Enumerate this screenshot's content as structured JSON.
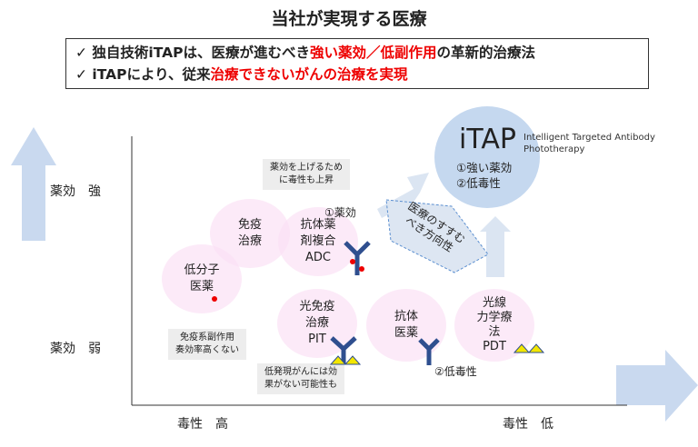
{
  "title": "当社が実現する医療",
  "summary": {
    "line1": {
      "check": "✓",
      "pre": "独自技術iTAPは、医療が進むべき",
      "red": "強い薬効／低副作用",
      "post": "の革新的治療法"
    },
    "line2": {
      "check": "✓",
      "pre": "iTAPにより、従来",
      "red": "治療できないがんの治療を実現",
      "post": ""
    }
  },
  "axes": {
    "y_high": "薬効　強",
    "y_low": "薬効　弱",
    "x_high": "毒性　高",
    "x_low": "毒性　低"
  },
  "circles": {
    "small_molecule": "低分子\n医薬",
    "immunotherapy": "免疫\n治療",
    "adc": "抗体薬\n剤複合\nADC",
    "pit": "光免疫\n治療\nPIT",
    "antibody": "抗体\n医薬",
    "pdt": "光線\n力学療\n法\nPDT"
  },
  "itap": {
    "name": "iTAP",
    "full": "Intelligent Targeted Antibody\nPhototherapy",
    "points": "①強い薬効\n②低毒性"
  },
  "callouts": {
    "adc": "薬効を上げるため\nに毒性も上昇",
    "immuno": "免疫系副作用\n奏効率高くない",
    "pit": "低発現がんには効\n果がない可能性も",
    "direction": "医療のすすむ\nべき方向性"
  },
  "labels": {
    "efficacy": "①薬効",
    "low_toxicity": "②低毒性"
  },
  "colors": {
    "arrow": "#c9d9ef",
    "itap": "#c5d8ef",
    "circle": "#fadef5",
    "red": "#e00000",
    "antibody": "#2f4f8f",
    "triangle": "#f2e600"
  }
}
